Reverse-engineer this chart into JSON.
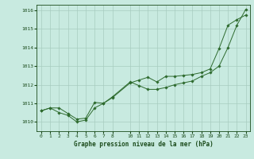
{
  "background_color": "#c8eae0",
  "plot_bg_color": "#c8eae0",
  "line_color": "#2d6a2d",
  "marker_color": "#2d6a2d",
  "xlabel": "Graphe pression niveau de la mer (hPa)",
  "ylim": [
    1009.5,
    1016.3
  ],
  "yticks": [
    1010,
    1011,
    1012,
    1013,
    1014,
    1015,
    1016
  ],
  "xlim": [
    -0.5,
    23.5
  ],
  "xticks": [
    0,
    1,
    2,
    3,
    4,
    5,
    6,
    7,
    8,
    10,
    11,
    12,
    13,
    14,
    15,
    16,
    17,
    18,
    19,
    20,
    21,
    22,
    23
  ],
  "grid_color": "#a8ccc0",
  "series1_x": [
    0,
    1,
    2,
    3,
    4,
    5,
    6,
    7,
    8,
    10,
    11,
    12,
    13,
    14,
    15,
    16,
    17,
    18,
    19,
    20,
    21,
    22,
    23
  ],
  "series1_y": [
    1010.6,
    1010.75,
    1010.75,
    1010.45,
    1010.15,
    1010.2,
    1011.05,
    1011.0,
    1011.3,
    1012.1,
    1012.25,
    1012.4,
    1012.15,
    1012.45,
    1012.45,
    1012.5,
    1012.55,
    1012.65,
    1012.85,
    1013.95,
    1015.2,
    1015.5,
    1015.75
  ],
  "series2_x": [
    0,
    1,
    2,
    3,
    4,
    5,
    6,
    7,
    8,
    10,
    11,
    12,
    13,
    14,
    15,
    16,
    17,
    18,
    19,
    20,
    21,
    22,
    23
  ],
  "series2_y": [
    1010.6,
    1010.75,
    1010.5,
    1010.35,
    1010.0,
    1010.1,
    1010.75,
    1011.0,
    1011.35,
    1012.15,
    1011.95,
    1011.75,
    1011.75,
    1011.85,
    1012.0,
    1012.1,
    1012.2,
    1012.45,
    1012.65,
    1013.0,
    1014.0,
    1015.2,
    1016.05
  ]
}
